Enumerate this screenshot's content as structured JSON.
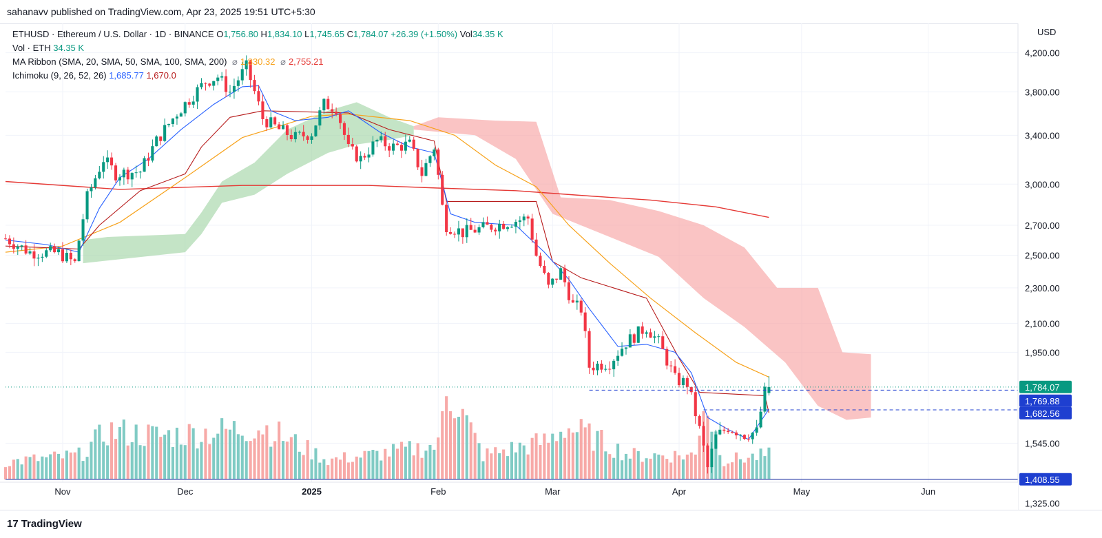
{
  "header": {
    "published": "sahanavv published on TradingView.com, Apr 23, 2025 19:51 UTC+5:30"
  },
  "legend": {
    "symbol": "ETHUSD · Ethereum / U.S. Dollar · 1D · BINANCE",
    "o_label": "O",
    "o": "1,756.80",
    "h_label": "H",
    "h": "1,834.10",
    "l_label": "L",
    "l": "1,745.65",
    "c_label": "C",
    "c": "1,784.07",
    "change": "+26.39 (+1.50%)",
    "vol_label": "Vol",
    "vol": "34.35 K",
    "vol_eth_label": "Vol · ETH",
    "vol_eth": "34.35 K",
    "ma_label": "MA Ribbon (SMA, 20, SMA, 50, SMA, 100, SMA, 200)",
    "ma_sym": "⌀",
    "ma1": "1,830.32",
    "ma2": "2,755.21",
    "ichi_label": "Ichimoku (9, 26, 52, 26)",
    "ichi1": "1,685.77",
    "ichi2": "1,670.0"
  },
  "footer": {
    "logo_mark": "17",
    "logo_text": "TradingView"
  },
  "colors": {
    "up": "#089981",
    "down": "#f23645",
    "vol_up": "#80cbc4",
    "vol_down": "#f7a9a7",
    "ma50": "#f7a21b",
    "ma200": "#e53935",
    "tenkan": "#2962ff",
    "kijun": "#b71c1c",
    "cloud_green": "#a5d6a7",
    "cloud_red": "#f8a5a4",
    "price_line": "#089981"
  },
  "chart_data": {
    "type": "candlestick",
    "currency": "USD",
    "y_scale": "log",
    "ylim": [
      1240,
      4480
    ],
    "x_range": [
      "2024-10-18",
      "2025-06-23"
    ],
    "y_ticks": [
      "4,200.00",
      "3,800.00",
      "3,400.00",
      "3,000.00",
      "2,700.00",
      "2,500.00",
      "2,300.00",
      "2,100.00",
      "1,950.00",
      "1,545.00",
      "1,325.00"
    ],
    "y_tick_values": [
      4200,
      3800,
      3400,
      3000,
      2700,
      2500,
      2300,
      2100,
      1950,
      1545,
      1325
    ],
    "x_ticks": [
      {
        "label": "Nov",
        "date": "2024-11-01",
        "bold": false
      },
      {
        "label": "Dec",
        "date": "2024-12-01",
        "bold": false
      },
      {
        "label": "2025",
        "date": "2025-01-01",
        "bold": true
      },
      {
        "label": "Feb",
        "date": "2025-02-01",
        "bold": false
      },
      {
        "label": "Mar",
        "date": "2025-03-01",
        "bold": false
      },
      {
        "label": "Apr",
        "date": "2025-04-01",
        "bold": false
      },
      {
        "label": "May",
        "date": "2025-05-01",
        "bold": false
      },
      {
        "label": "Jun",
        "date": "2025-06-01",
        "bold": false
      }
    ],
    "price_labels": [
      {
        "label": "1,784.07",
        "value": 1784.07,
        "bg": "#089981"
      },
      {
        "label": "1,769.88",
        "value": 1769.88,
        "bg": "#1e3fd0"
      },
      {
        "label": "1,682.56",
        "value": 1682.56,
        "bg": "#1e3fd0"
      },
      {
        "label": "1,408.55",
        "value": 1408.55,
        "bg": "#1e3fd0"
      }
    ],
    "hline": {
      "value": 1408.55,
      "color": "#3949ab"
    },
    "dashed_lines": [
      {
        "value": 1769.88,
        "from": "2025-03-10"
      },
      {
        "value": 1682.56,
        "from": "2025-04-07"
      }
    ],
    "close_path": [
      [
        "2024-10-18",
        2610
      ],
      [
        "2024-10-24",
        2520
      ],
      [
        "2024-10-31",
        2515
      ],
      [
        "2024-11-04",
        2450
      ],
      [
        "2024-11-07",
        2900
      ],
      [
        "2024-11-11",
        3200
      ],
      [
        "2024-11-14",
        3080
      ],
      [
        "2024-11-20",
        3100
      ],
      [
        "2024-11-24",
        3350
      ],
      [
        "2024-11-29",
        3600
      ],
      [
        "2024-12-06",
        3900
      ],
      [
        "2024-12-09",
        3950
      ],
      [
        "2024-12-12",
        3800
      ],
      [
        "2024-12-16",
        4050
      ],
      [
        "2024-12-20",
        3550
      ],
      [
        "2024-12-24",
        3450
      ],
      [
        "2024-12-28",
        3380
      ],
      [
        "2025-01-01",
        3420
      ],
      [
        "2025-01-04",
        3680
      ],
      [
        "2025-01-07",
        3650
      ],
      [
        "2025-01-10",
        3280
      ],
      [
        "2025-01-13",
        3200
      ],
      [
        "2025-01-17",
        3350
      ],
      [
        "2025-01-21",
        3300
      ],
      [
        "2025-01-25",
        3320
      ],
      [
        "2025-01-28",
        3080
      ],
      [
        "2025-01-31",
        3300
      ],
      [
        "2025-02-02",
        2830
      ],
      [
        "2025-02-03",
        2700
      ],
      [
        "2025-02-07",
        2650
      ],
      [
        "2025-02-12",
        2680
      ],
      [
        "2025-02-18",
        2720
      ],
      [
        "2025-02-23",
        2750
      ],
      [
        "2025-02-25",
        2500
      ],
      [
        "2025-02-28",
        2300
      ],
      [
        "2025-03-03",
        2400
      ],
      [
        "2025-03-06",
        2200
      ],
      [
        "2025-03-08",
        2180
      ],
      [
        "2025-03-10",
        1880
      ],
      [
        "2025-03-15",
        1900
      ],
      [
        "2025-03-19",
        2000
      ],
      [
        "2025-03-24",
        2080
      ],
      [
        "2025-03-27",
        2000
      ],
      [
        "2025-03-31",
        1820
      ],
      [
        "2025-04-03",
        1800
      ],
      [
        "2025-04-06",
        1600
      ],
      [
        "2025-04-08",
        1450
      ],
      [
        "2025-04-10",
        1570
      ],
      [
        "2025-04-13",
        1610
      ],
      [
        "2025-04-17",
        1580
      ],
      [
        "2025-04-20",
        1590
      ],
      [
        "2025-04-22",
        1760
      ],
      [
        "2025-04-23",
        1784
      ]
    ],
    "volume_path": [
      [
        "2024-10-18",
        0.18
      ],
      [
        "2024-11-05",
        0.25
      ],
      [
        "2024-11-12",
        0.5
      ],
      [
        "2024-11-25",
        0.45
      ],
      [
        "2024-12-10",
        0.5
      ],
      [
        "2024-12-20",
        0.55
      ],
      [
        "2025-01-05",
        0.2
      ],
      [
        "2025-01-15",
        0.25
      ],
      [
        "2025-02-01",
        0.35
      ],
      [
        "2025-02-03",
        1.0
      ],
      [
        "2025-02-12",
        0.25
      ],
      [
        "2025-02-28",
        0.4
      ],
      [
        "2025-03-04",
        0.55
      ],
      [
        "2025-03-10",
        0.45
      ],
      [
        "2025-03-20",
        0.25
      ],
      [
        "2025-04-05",
        0.25
      ],
      [
        "2025-04-07",
        0.85
      ],
      [
        "2025-04-12",
        0.2
      ],
      [
        "2025-04-23",
        0.25
      ]
    ],
    "ma50": [
      [
        "2024-10-18",
        2520
      ],
      [
        "2024-11-01",
        2560
      ],
      [
        "2024-11-15",
        2720
      ],
      [
        "2024-12-01",
        3050
      ],
      [
        "2024-12-15",
        3380
      ],
      [
        "2025-01-01",
        3570
      ],
      [
        "2025-01-10",
        3590
      ],
      [
        "2025-01-25",
        3530
      ],
      [
        "2025-02-05",
        3400
      ],
      [
        "2025-02-15",
        3150
      ],
      [
        "2025-02-25",
        2980
      ],
      [
        "2025-03-05",
        2700
      ],
      [
        "2025-03-15",
        2450
      ],
      [
        "2025-03-25",
        2240
      ],
      [
        "2025-04-05",
        2050
      ],
      [
        "2025-04-15",
        1900
      ],
      [
        "2025-04-23",
        1830
      ]
    ],
    "ma200": [
      [
        "2024-10-18",
        3020
      ],
      [
        "2024-11-15",
        2960
      ],
      [
        "2024-12-15",
        2990
      ],
      [
        "2025-01-15",
        2990
      ],
      [
        "2025-02-01",
        2970
      ],
      [
        "2025-02-20",
        2950
      ],
      [
        "2025-03-10",
        2910
      ],
      [
        "2025-03-25",
        2880
      ],
      [
        "2025-04-10",
        2830
      ],
      [
        "2025-04-23",
        2755
      ]
    ],
    "tenkan": [
      [
        "2024-10-18",
        2600
      ],
      [
        "2024-10-28",
        2570
      ],
      [
        "2024-11-05",
        2520
      ],
      [
        "2024-11-10",
        2820
      ],
      [
        "2024-11-15",
        3050
      ],
      [
        "2024-11-22",
        3200
      ],
      [
        "2024-11-30",
        3450
      ],
      [
        "2024-12-08",
        3680
      ],
      [
        "2024-12-15",
        3850
      ],
      [
        "2024-12-19",
        3860
      ],
      [
        "2024-12-22",
        3620
      ],
      [
        "2024-12-28",
        3530
      ],
      [
        "2025-01-05",
        3560
      ],
      [
        "2025-01-10",
        3620
      ],
      [
        "2025-01-18",
        3420
      ],
      [
        "2025-01-25",
        3300
      ],
      [
        "2025-01-31",
        3250
      ],
      [
        "2025-02-04",
        2780
      ],
      [
        "2025-02-10",
        2720
      ],
      [
        "2025-02-20",
        2700
      ],
      [
        "2025-02-27",
        2520
      ],
      [
        "2025-03-05",
        2350
      ],
      [
        "2025-03-10",
        2180
      ],
      [
        "2025-03-17",
        1980
      ],
      [
        "2025-03-24",
        1990
      ],
      [
        "2025-03-31",
        1950
      ],
      [
        "2025-04-04",
        1850
      ],
      [
        "2025-04-08",
        1650
      ],
      [
        "2025-04-13",
        1600
      ],
      [
        "2025-04-18",
        1560
      ],
      [
        "2025-04-23",
        1686
      ]
    ],
    "kijun": [
      [
        "2024-10-18",
        2560
      ],
      [
        "2024-11-05",
        2540
      ],
      [
        "2024-11-10",
        2700
      ],
      [
        "2024-11-20",
        2950
      ],
      [
        "2024-12-01",
        3080
      ],
      [
        "2024-12-05",
        3300
      ],
      [
        "2024-12-12",
        3560
      ],
      [
        "2024-12-20",
        3620
      ],
      [
        "2025-01-10",
        3600
      ],
      [
        "2025-01-20",
        3450
      ],
      [
        "2025-01-31",
        3350
      ],
      [
        "2025-02-03",
        2870
      ],
      [
        "2025-02-25",
        2870
      ],
      [
        "2025-03-01",
        2460
      ],
      [
        "2025-03-08",
        2360
      ],
      [
        "2025-03-24",
        2240
      ],
      [
        "2025-04-01",
        1920
      ],
      [
        "2025-04-06",
        1760
      ],
      [
        "2025-04-22",
        1745
      ],
      [
        "2025-04-23",
        1670
      ]
    ],
    "cloud_green": {
      "top": [
        [
          "2024-11-06",
          2600
        ],
        [
          "2024-11-12",
          2620
        ],
        [
          "2024-12-01",
          2640
        ],
        [
          "2024-12-05",
          2790
        ],
        [
          "2024-12-10",
          3020
        ],
        [
          "2024-12-18",
          3170
        ],
        [
          "2024-12-26",
          3450
        ],
        [
          "2025-01-05",
          3620
        ],
        [
          "2025-01-12",
          3700
        ],
        [
          "2025-01-20",
          3560
        ],
        [
          "2025-01-26",
          3480
        ]
      ],
      "bottom": [
        [
          "2024-11-06",
          2450
        ],
        [
          "2024-12-01",
          2520
        ],
        [
          "2024-12-05",
          2640
        ],
        [
          "2024-12-10",
          2860
        ],
        [
          "2024-12-18",
          2920
        ],
        [
          "2024-12-26",
          3080
        ],
        [
          "2025-01-05",
          3250
        ],
        [
          "2025-01-12",
          3320
        ],
        [
          "2025-01-20",
          3360
        ],
        [
          "2025-01-26",
          3400
        ]
      ]
    },
    "cloud_red": {
      "top": [
        [
          "2025-01-26",
          3480
        ],
        [
          "2025-02-01",
          3560
        ],
        [
          "2025-02-15",
          3530
        ],
        [
          "2025-02-25",
          3520
        ],
        [
          "2025-03-03",
          2900
        ],
        [
          "2025-03-15",
          2880
        ],
        [
          "2025-03-27",
          2800
        ],
        [
          "2025-04-07",
          2700
        ],
        [
          "2025-04-17",
          2550
        ],
        [
          "2025-04-25",
          2300
        ],
        [
          "2025-05-05",
          2300
        ],
        [
          "2025-05-11",
          1950
        ],
        [
          "2025-05-18",
          1940
        ]
      ],
      "bottom": [
        [
          "2025-01-26",
          3450
        ],
        [
          "2025-02-10",
          3400
        ],
        [
          "2025-02-20",
          3200
        ],
        [
          "2025-03-01",
          2780
        ],
        [
          "2025-03-15",
          2620
        ],
        [
          "2025-03-27",
          2490
        ],
        [
          "2025-04-07",
          2240
        ],
        [
          "2025-04-17",
          2080
        ],
        [
          "2025-04-27",
          1900
        ],
        [
          "2025-05-05",
          1700
        ],
        [
          "2025-05-12",
          1640
        ],
        [
          "2025-05-18",
          1650
        ]
      ]
    },
    "last": {
      "date": "2025-04-23",
      "open": 1756.8,
      "high": 1834.1,
      "low": 1745.65,
      "close": 1784.07
    }
  }
}
